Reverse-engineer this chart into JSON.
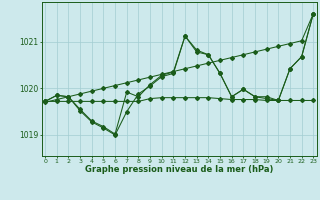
{
  "xlabel": "Graphe pression niveau de la mer (hPa)",
  "xlim": [
    -0.3,
    23.3
  ],
  "ylim": [
    1018.55,
    1021.85
  ],
  "yticks": [
    1019,
    1020,
    1021
  ],
  "xticks": [
    0,
    1,
    2,
    3,
    4,
    5,
    6,
    7,
    8,
    9,
    10,
    11,
    12,
    13,
    14,
    15,
    16,
    17,
    18,
    19,
    20,
    21,
    22,
    23
  ],
  "bg_color": "#cde9ec",
  "grid_color": "#a3cdd2",
  "line_color": "#1a5c1a",
  "line_trend": [
    1019.7,
    1019.76,
    1019.82,
    1019.88,
    1019.94,
    1020.0,
    1020.06,
    1020.12,
    1020.18,
    1020.24,
    1020.3,
    1020.36,
    1020.42,
    1020.48,
    1020.54,
    1020.6,
    1020.66,
    1020.72,
    1020.78,
    1020.84,
    1020.9,
    1020.96,
    1021.02,
    1021.6
  ],
  "line_flat": [
    1019.72,
    1019.72,
    1019.72,
    1019.72,
    1019.72,
    1019.72,
    1019.72,
    1019.72,
    1019.72,
    1019.78,
    1019.8,
    1019.8,
    1019.8,
    1019.8,
    1019.8,
    1019.78,
    1019.76,
    1019.76,
    1019.76,
    1019.74,
    1019.74,
    1019.74,
    1019.74,
    1019.74
  ],
  "line_main": [
    1019.72,
    1019.85,
    1019.82,
    1019.55,
    1019.3,
    1019.18,
    1019.02,
    1019.92,
    1019.82,
    1020.08,
    1020.28,
    1020.35,
    1021.12,
    1020.82,
    1020.72,
    1020.32,
    1019.82,
    1019.98,
    1019.82,
    1019.78,
    1019.74,
    1020.42,
    1020.68,
    1021.6
  ],
  "line_alt": [
    1019.72,
    1019.85,
    1019.82,
    1019.52,
    1019.28,
    1019.15,
    1019.0,
    1019.5,
    1019.88,
    1020.05,
    1020.25,
    1020.32,
    1021.12,
    1020.78,
    1020.72,
    1020.32,
    1019.82,
    1019.98,
    1019.82,
    1019.82,
    1019.74,
    1020.42,
    1020.68,
    1021.6
  ]
}
